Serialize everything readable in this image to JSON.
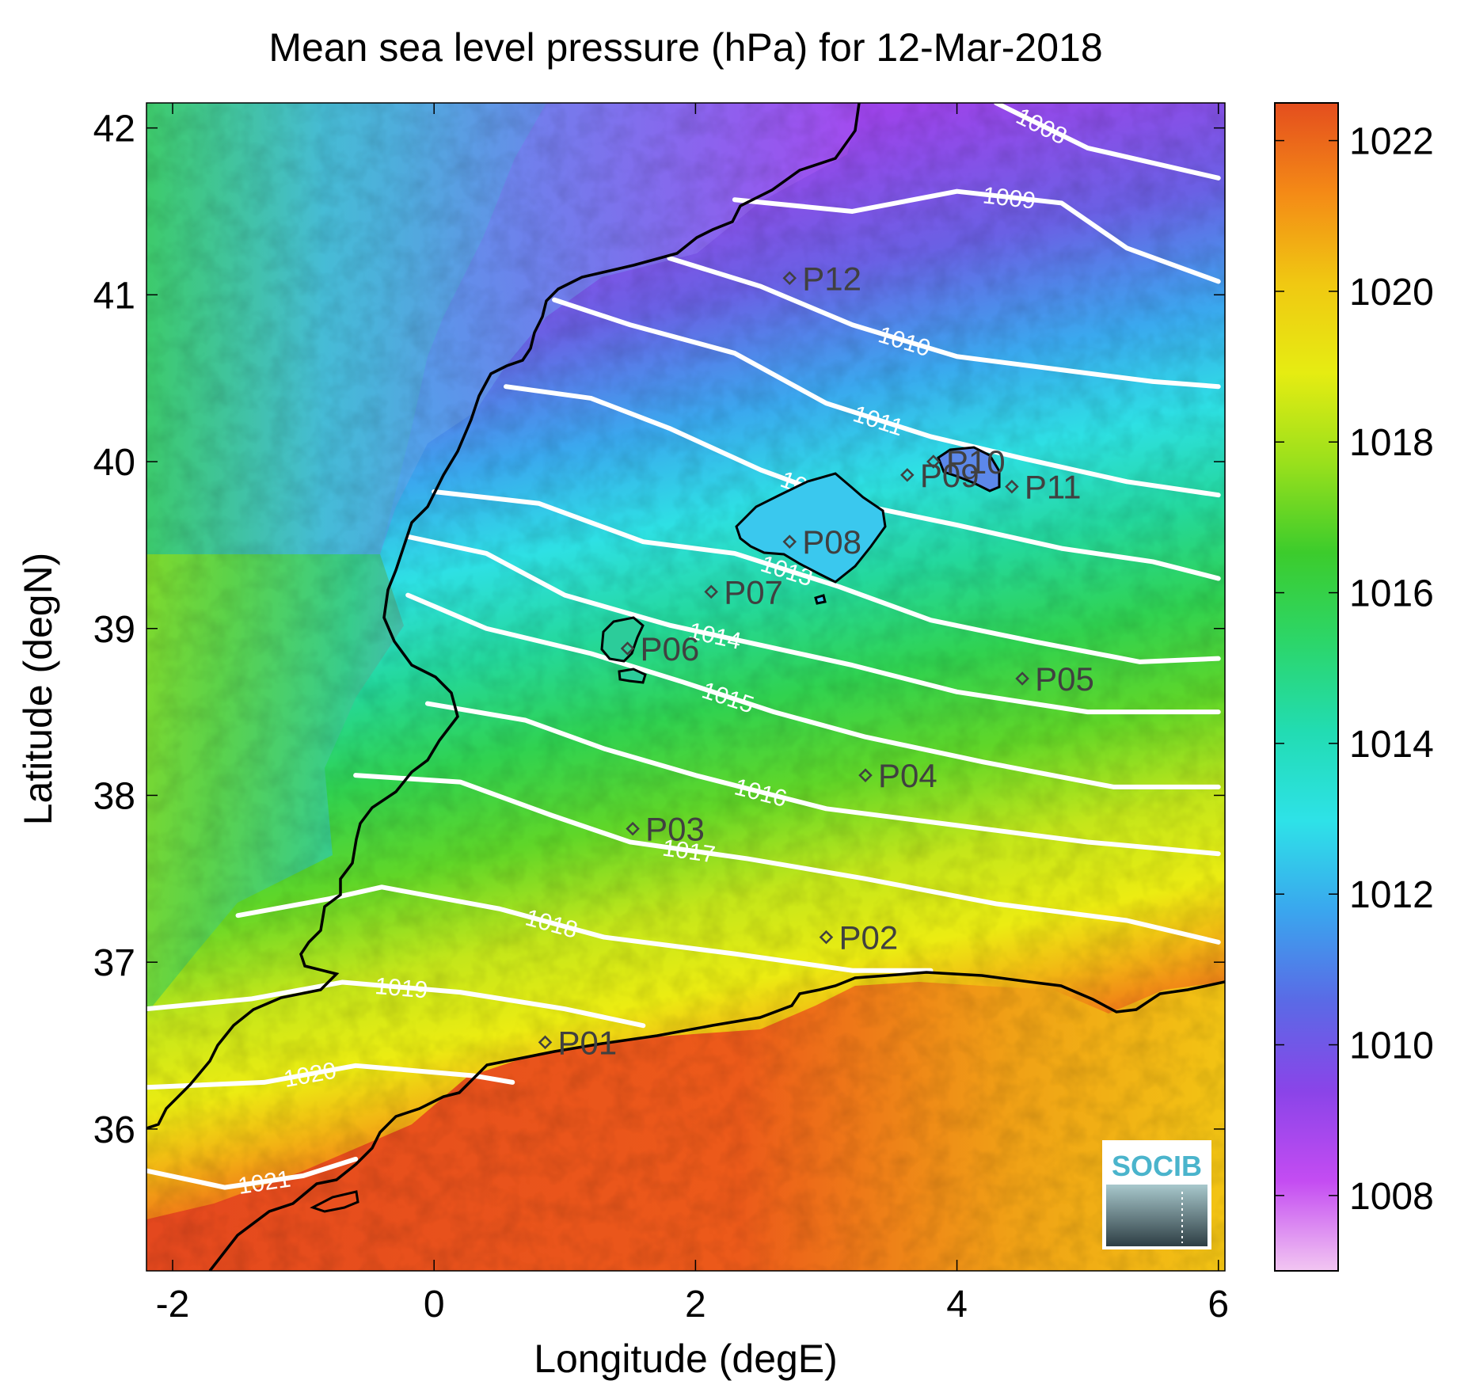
{
  "figure": {
    "title": "Mean sea level pressure (hPa) for 12-Mar-2018",
    "xlabel": "Longitude (degE)",
    "ylabel": "Latitude (degN)",
    "logo_text": "SOCIB"
  },
  "chart_data": {
    "type": "heatmap",
    "title": "Mean sea level pressure (hPa) for 12-Mar-2018",
    "xlabel": "Longitude (degE)",
    "ylabel": "Latitude (degN)",
    "xlim": [
      -2.2,
      6.05
    ],
    "ylim": [
      35.15,
      42.15
    ],
    "xticks": [
      -2,
      0,
      2,
      4,
      6
    ],
    "yticks": [
      36,
      37,
      38,
      39,
      40,
      41,
      42
    ],
    "colorbar": {
      "label": "",
      "range": [
        1007,
        1022.5
      ],
      "ticks": [
        1008,
        1010,
        1012,
        1014,
        1016,
        1018,
        1020,
        1022
      ],
      "colors": [
        "#f2c6f2",
        "#c44cf2",
        "#8a44e8",
        "#5a6ae6",
        "#3aa6ee",
        "#2ee2e8",
        "#22dcb2",
        "#2cd66a",
        "#3ccc2c",
        "#9ae01c",
        "#e6ec12",
        "#f0c812",
        "#f48a16",
        "#e44e1e"
      ]
    },
    "isobars": [
      {
        "value": 1008,
        "label": "1008",
        "points": [
          [
            4.3,
            42.15
          ],
          [
            5.0,
            41.88
          ],
          [
            6.0,
            41.7
          ]
        ]
      },
      {
        "value": 1009,
        "label": "1009",
        "points": [
          [
            2.3,
            41.57
          ],
          [
            3.2,
            41.5
          ],
          [
            4.0,
            41.62
          ],
          [
            4.8,
            41.55
          ],
          [
            5.3,
            41.28
          ],
          [
            6.0,
            41.08
          ]
        ]
      },
      {
        "value": 1010,
        "label": "1010",
        "points": [
          [
            1.8,
            41.22
          ],
          [
            2.5,
            41.05
          ],
          [
            3.2,
            40.82
          ],
          [
            4.0,
            40.63
          ],
          [
            4.8,
            40.55
          ],
          [
            5.5,
            40.48
          ],
          [
            6.0,
            40.45
          ]
        ]
      },
      {
        "value": 1011,
        "label": "1011",
        "points": [
          [
            0.92,
            40.97
          ],
          [
            1.5,
            40.82
          ],
          [
            2.3,
            40.65
          ],
          [
            3.0,
            40.35
          ],
          [
            3.8,
            40.15
          ],
          [
            4.5,
            40.02
          ],
          [
            5.3,
            39.88
          ],
          [
            6.0,
            39.8
          ]
        ]
      },
      {
        "value": 1012,
        "label": "1012",
        "points": [
          [
            0.55,
            40.45
          ],
          [
            1.2,
            40.38
          ],
          [
            1.8,
            40.2
          ],
          [
            2.5,
            39.95
          ],
          [
            3.2,
            39.75
          ],
          [
            4.0,
            39.62
          ],
          [
            4.8,
            39.48
          ],
          [
            5.5,
            39.4
          ],
          [
            6.0,
            39.3
          ]
        ]
      },
      {
        "value": 1013,
        "label": "1013",
        "points": [
          [
            0.0,
            39.82
          ],
          [
            0.8,
            39.75
          ],
          [
            1.6,
            39.52
          ],
          [
            2.3,
            39.45
          ],
          [
            3.1,
            39.25
          ],
          [
            3.8,
            39.05
          ],
          [
            4.6,
            38.92
          ],
          [
            5.4,
            38.8
          ],
          [
            6.0,
            38.82
          ]
        ]
      },
      {
        "value": 1014,
        "label": "1014",
        "points": [
          [
            -0.2,
            39.55
          ],
          [
            0.4,
            39.45
          ],
          [
            1.0,
            39.2
          ],
          [
            1.8,
            39.02
          ],
          [
            2.5,
            38.9
          ],
          [
            3.2,
            38.78
          ],
          [
            4.0,
            38.62
          ],
          [
            5.0,
            38.5
          ],
          [
            6.0,
            38.5
          ]
        ]
      },
      {
        "value": 1015,
        "label": "1015",
        "points": [
          [
            -0.2,
            39.2
          ],
          [
            0.4,
            39.0
          ],
          [
            1.2,
            38.85
          ],
          [
            1.9,
            38.68
          ],
          [
            2.6,
            38.5
          ],
          [
            3.3,
            38.35
          ],
          [
            4.2,
            38.2
          ],
          [
            5.2,
            38.05
          ],
          [
            6.0,
            38.05
          ]
        ]
      },
      {
        "value": 1016,
        "label": "1016",
        "points": [
          [
            -0.05,
            38.55
          ],
          [
            0.7,
            38.45
          ],
          [
            1.3,
            38.28
          ],
          [
            2.0,
            38.12
          ],
          [
            3.0,
            37.92
          ],
          [
            4.0,
            37.82
          ],
          [
            5.0,
            37.72
          ],
          [
            6.0,
            37.65
          ]
        ]
      },
      {
        "value": 1017,
        "label": "1017",
        "points": [
          [
            -0.6,
            38.12
          ],
          [
            0.2,
            38.08
          ],
          [
            0.9,
            37.88
          ],
          [
            1.5,
            37.72
          ],
          [
            2.4,
            37.62
          ],
          [
            3.3,
            37.5
          ],
          [
            4.3,
            37.35
          ],
          [
            5.3,
            37.25
          ],
          [
            6.0,
            37.12
          ]
        ]
      },
      {
        "value": 1018,
        "label": "1018",
        "points": [
          [
            -1.5,
            37.28
          ],
          [
            -0.8,
            37.38
          ],
          [
            -0.4,
            37.45
          ],
          [
            0.5,
            37.32
          ],
          [
            1.3,
            37.15
          ],
          [
            2.3,
            37.05
          ],
          [
            3.2,
            36.95
          ],
          [
            3.8,
            36.95
          ]
        ]
      },
      {
        "value": 1019,
        "label": "1019",
        "points": [
          [
            -2.2,
            36.72
          ],
          [
            -1.4,
            36.78
          ],
          [
            -0.7,
            36.88
          ],
          [
            0.2,
            36.82
          ],
          [
            1.0,
            36.72
          ],
          [
            1.6,
            36.62
          ]
        ]
      },
      {
        "value": 1020,
        "label": "1020",
        "points": [
          [
            -2.2,
            36.25
          ],
          [
            -1.3,
            36.28
          ],
          [
            -0.6,
            36.38
          ],
          [
            0.3,
            36.32
          ],
          [
            0.6,
            36.28
          ]
        ]
      },
      {
        "value": 1021,
        "label": "1021",
        "points": [
          [
            -2.2,
            35.75
          ],
          [
            -1.6,
            35.65
          ],
          [
            -1.0,
            35.72
          ],
          [
            -0.6,
            35.82
          ]
        ]
      }
    ],
    "points": [
      {
        "name": "P01",
        "lon": 0.85,
        "lat": 36.52
      },
      {
        "name": "P02",
        "lon": 3.0,
        "lat": 37.15
      },
      {
        "name": "P03",
        "lon": 1.52,
        "lat": 37.8
      },
      {
        "name": "P04",
        "lon": 3.3,
        "lat": 38.12
      },
      {
        "name": "P05",
        "lon": 4.5,
        "lat": 38.7
      },
      {
        "name": "P06",
        "lon": 1.48,
        "lat": 38.88
      },
      {
        "name": "P07",
        "lon": 2.12,
        "lat": 39.22
      },
      {
        "name": "P08",
        "lon": 2.72,
        "lat": 39.52
      },
      {
        "name": "P09",
        "lon": 3.62,
        "lat": 39.92
      },
      {
        "name": "P10",
        "lon": 3.82,
        "lat": 40.0
      },
      {
        "name": "P11",
        "lon": 4.42,
        "lat": 39.85
      },
      {
        "name": "P12",
        "lon": 2.72,
        "lat": 41.1
      }
    ]
  }
}
